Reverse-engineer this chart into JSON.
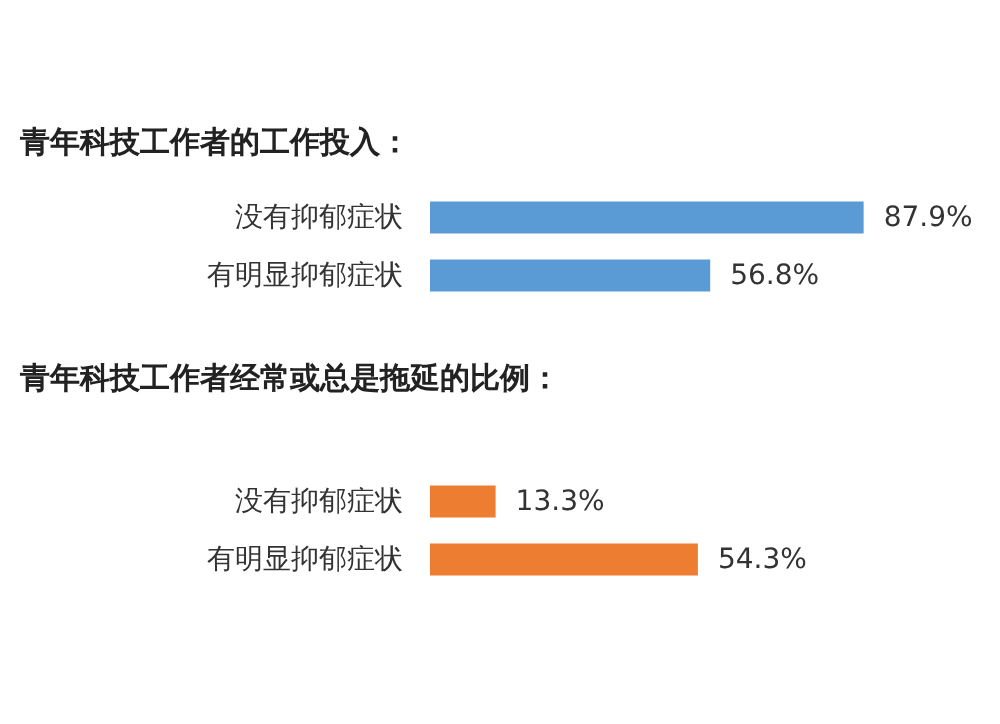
{
  "chart_data": [
    {
      "type": "bar",
      "orientation": "horizontal",
      "title": "青年科技工作者的工作投入：",
      "categories": [
        "没有抑郁症状",
        "有明显抑郁症状"
      ],
      "values": [
        87.9,
        56.8
      ],
      "value_labels": [
        "87.9%",
        "56.8%"
      ],
      "color": "#5b9bd5",
      "tick_labels": "y"
    },
    {
      "type": "bar",
      "orientation": "horizontal",
      "title": "青年科技工作者经常或总是拖延的比例：",
      "categories": [
        "没有抑郁症状",
        "有明显抑郁症状"
      ],
      "values": [
        13.3,
        54.3
      ],
      "value_labels": [
        "13.3%",
        "54.3%"
      ],
      "color": "#ed7d31",
      "tick_labels": "y"
    }
  ]
}
